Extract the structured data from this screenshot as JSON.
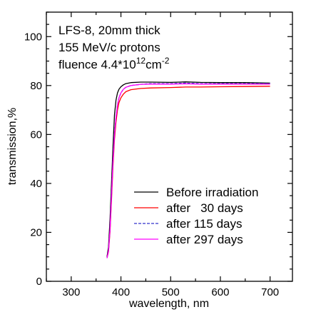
{
  "chart_data": {
    "type": "line",
    "annotation_lines": [
      "LFS-8, 20mm thick",
      "155 MeV/c protons",
      "fluence 4.4*10",
      "12",
      "cm",
      "-2"
    ],
    "xlabel": "wavelength, nm",
    "ylabel": "transmission,%",
    "xlim": [
      250,
      745
    ],
    "ylim": [
      0,
      110
    ],
    "xticks": [
      300,
      400,
      500,
      600,
      700
    ],
    "yticks": [
      0,
      20,
      40,
      60,
      80,
      100
    ],
    "legend_position": "lower-right",
    "grid": false,
    "series": [
      {
        "name": "Before irradiation",
        "color": "#000000",
        "dash": "none",
        "x": [
          372,
          375,
          378,
          381,
          384,
          387,
          390,
          393,
          396,
          400,
          405,
          410,
          420,
          440,
          460,
          500,
          530,
          560,
          600,
          650,
          700
        ],
        "y": [
          10,
          14,
          25,
          40,
          55,
          68,
          74,
          77,
          78.5,
          79.5,
          80.3,
          80.8,
          81.2,
          81.4,
          81.4,
          81.3,
          81.5,
          81.3,
          81.2,
          81.2,
          81.0
        ]
      },
      {
        "name": "after   30 days",
        "color": "#ff0000",
        "dash": "none",
        "x": [
          372,
          375,
          378,
          381,
          384,
          387,
          390,
          393,
          396,
          400,
          405,
          410,
          420,
          440,
          460,
          500,
          530,
          560,
          600,
          650,
          700
        ],
        "y": [
          9.5,
          12,
          20,
          33,
          47,
          58,
          65,
          70,
          73,
          75,
          76.5,
          77.5,
          78.3,
          78.8,
          79.0,
          79.2,
          79.4,
          79.4,
          79.5,
          79.6,
          79.7
        ]
      },
      {
        "name": "after 115 days",
        "color": "#3333cc",
        "dash": "4,2",
        "x": [
          372,
          375,
          378,
          381,
          384,
          387,
          390,
          393,
          396,
          400,
          405,
          410,
          420,
          440,
          460,
          500,
          530,
          560,
          600,
          650,
          700
        ],
        "y": [
          9.5,
          12.5,
          21,
          35,
          49,
          60,
          67,
          72,
          75,
          77,
          78.5,
          79.3,
          80.0,
          80.5,
          80.8,
          80.8,
          81.0,
          80.8,
          80.8,
          80.8,
          80.8
        ]
      },
      {
        "name": "after 297 days",
        "color": "#ff00ff",
        "dash": "none",
        "x": [
          372,
          375,
          378,
          381,
          384,
          387,
          390,
          393,
          396,
          400,
          405,
          410,
          420,
          440,
          460,
          500,
          530,
          560,
          600,
          650,
          700
        ],
        "y": [
          9.5,
          12.5,
          21,
          35,
          49,
          60,
          67,
          72,
          75,
          77,
          78.5,
          79.3,
          80.0,
          80.5,
          80.6,
          80.6,
          80.7,
          80.6,
          80.6,
          80.6,
          80.6
        ]
      }
    ]
  }
}
